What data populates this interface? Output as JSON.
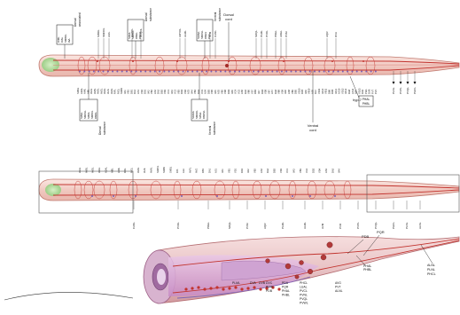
{
  "colors": {
    "worm_body": "#f1c9c1",
    "worm_edge": "#c07a70",
    "nerve_red": "#c2342f",
    "neuron_purple": "#7a63b8",
    "pharynx_green": "#b9e0a8",
    "pharynx_pink": "#e7b3c8",
    "ink": "#111111"
  },
  "labels": {
    "lumbar_top": [
      "Dorsal",
      "cord"
    ],
    "hyp7": "hyp-7",
    "ventral_cord": [
      "Ventral",
      "cord"
    ],
    "phasmid_left": [
      "PHAL",
      "PHBL"
    ],
    "phasmid_right": [
      "PHAL",
      "PHBL"
    ],
    "tail_right": [
      "ALNL",
      "PLNL",
      "PHCL"
    ],
    "pqr": "PQR",
    "pdb": "PDB",
    "pvr": "PVR"
  },
  "groups_top": [
    {
      "key": "dorsal_assoc",
      "title": [
        "Dorsal",
        "associated"
      ],
      "items": [
        "RIML",
        "RIAL",
        "SMBDL",
        "AVL"
      ]
    },
    {
      "key": "dorsal_sub",
      "title": [
        "Dorsal",
        "substance"
      ],
      "items": [
        "SIADL",
        "SMDDL",
        "RMEL",
        "RMED"
      ]
    },
    {
      "key": "ventral_sub",
      "title": [
        "Ventral",
        "substance"
      ],
      "items": [
        "SAAVL",
        "SMDVL",
        "RMEV",
        "RIVL"
      ]
    }
  ],
  "groups_bottom": [
    {
      "key": "dorsal_sub_b",
      "title": [
        "Dorsal",
        "substance"
      ],
      "items": [
        "SIAVL",
        "SMDVL",
        "SIBDL",
        "SMBVL",
        "RMDL"
      ]
    },
    {
      "key": "ventral_sub_b",
      "title": [
        "Ventral",
        "substance"
      ],
      "items": [
        "SAADL",
        "SMDDL",
        "SIBVL",
        "RMDVL"
      ]
    }
  ],
  "top_neurons_worm1": [
    "SIBDL",
    "SMDDL",
    "AIZL",
    "CEPDL",
    "OLQDL",
    "URYDL",
    "ALML",
    "AVM",
    "CANL",
    "SDQL",
    "PLML",
    "PVDL",
    "PDEL",
    "ADEL",
    "PVM",
    "AQR",
    "DVA"
  ],
  "bottom_neurons_worm1": [
    "SMDL",
    "ADAL",
    "AIML",
    "AIBL",
    "AVAL",
    "AVBL",
    "AVDL",
    "AVEL",
    "AVHL",
    "AVJL",
    "AVKL",
    "RIFL",
    "RIGL",
    "SABD",
    "VA1",
    "VB1",
    "DB1",
    "DA1",
    "AS1",
    "VD2",
    "DD1",
    "VA2",
    "VB2",
    "AS2",
    "DA2",
    "DB2",
    "VD3",
    "VC1",
    "VA3",
    "VC2",
    "VB3",
    "DD2",
    "VD4",
    "AS3",
    "VA4",
    "VB4",
    "DA3",
    "VC3",
    "AS4",
    "DB3",
    "VD5",
    "VA5",
    "AS5",
    "VB5",
    "VD6",
    "DD3",
    "VA6",
    "VC4",
    "VC5",
    "AS6",
    "DA5",
    "VB6",
    "VD7",
    "DB4",
    "VA7",
    "DD4",
    "VD8",
    "VB7",
    "AS7",
    "DA6",
    "VB8",
    "VD9",
    "VA8",
    "AS8",
    "VB9",
    "DB5",
    "VD10",
    "DD5",
    "VA9",
    "VB10",
    "AS9",
    "DA7",
    "VD11",
    "VA10",
    "VB11",
    "DB6",
    "DD6",
    "VA11",
    "AS10",
    "VD12",
    "VA12",
    "DA8",
    "AS11",
    "DB7",
    "VD13",
    "DA9",
    "PDA",
    "DVB",
    "PVT",
    "PVC"
  ],
  "ventral_tail_labels": [
    "PLNL",
    "PVPL",
    "PVQL",
    "PHCL"
  ],
  "top_labels_worm2": [
    "AVAL",
    "AVBL",
    "AVDL",
    "AVEL",
    "ADAL",
    "AIBL",
    "AIML",
    "RIFL",
    "RIGL",
    "AVKL",
    "AVJL",
    "AVHL",
    "SABVL",
    "SABD",
    "SMDL",
    "RIS",
    "ALA",
    "AVFL",
    "AVG",
    "DB1",
    "DA1",
    "AS1",
    "VA1",
    "VB1",
    "VD1",
    "DD1",
    "VA2",
    "VB2",
    "AS2",
    "DA2",
    "DB2",
    "VD3",
    "VC1",
    "VA3",
    "VB3",
    "VC2",
    "DD2",
    "VD4",
    "AS3",
    "DA3",
    "VA4"
  ],
  "bottom_labels_worm2": [
    "CANL",
    "PVDL",
    "PDEL",
    "SDQL",
    "PVM",
    "AQR",
    "PLML",
    "ALML",
    "AVM",
    "PVR",
    "PVPL",
    "PVQL",
    "PHCL",
    "PLNL",
    "ALNL"
  ],
  "tail_detail_labels": [
    "PLML",
    "DVA",
    "DVB",
    "DVC",
    "PDA",
    "PQR",
    "PHAL",
    "PHBL",
    "PHCL",
    "LUAL",
    "PVCL",
    "PVNL",
    "PVQL",
    "PVWL",
    "AVG",
    "PVT",
    "ALNL",
    "PLNL",
    "PDB",
    "PVR",
    "LUAL",
    "PVCL",
    "PVNL",
    "PVQL",
    "PVWL",
    "DVA",
    "PDA",
    "PHAL",
    "PHBL"
  ]
}
